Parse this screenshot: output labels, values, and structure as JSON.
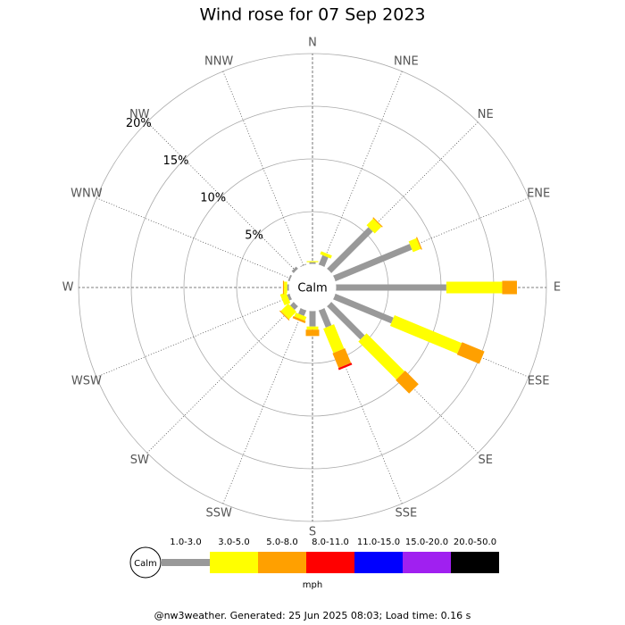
{
  "chart_data": {
    "type": "windrose",
    "title": "Wind rose for 07 Sep 2023",
    "directions": [
      "N",
      "NNE",
      "NE",
      "ENE",
      "E",
      "ESE",
      "SE",
      "SSE",
      "S",
      "SSW",
      "SW",
      "WSW",
      "W",
      "WNW",
      "NW",
      "NNW"
    ],
    "rlim": [
      0,
      20
    ],
    "rticks": [
      {
        "value": 5,
        "label": "5%"
      },
      {
        "value": 10,
        "label": "10%"
      },
      {
        "value": 15,
        "label": "15%"
      },
      {
        "value": 20,
        "label": "20%"
      }
    ],
    "center_label": "Calm",
    "unit": "mph",
    "series": [
      {
        "name": "1.0-3.0",
        "color": "#999999",
        "values": [
          0.2,
          1.0,
          5.6,
          7.9,
          10.5,
          6.0,
          4.5,
          1.8,
          1.5,
          0.6,
          0.5,
          0.3,
          0.2,
          0.2,
          0.3,
          0.1
        ]
      },
      {
        "name": "3.0-5.0",
        "color": "#ffff00",
        "values": [
          0.1,
          0.3,
          0.9,
          0.8,
          5.3,
          6.9,
          5.1,
          2.5,
          0.3,
          0.4,
          1.0,
          0.6,
          0.3,
          0,
          0,
          0
        ]
      },
      {
        "name": "5.0-8.0",
        "color": "#ffa000",
        "values": [
          0,
          0,
          0.1,
          0.1,
          1.4,
          2.3,
          1.8,
          1.5,
          0.6,
          0.2,
          0.1,
          0,
          0.1,
          0,
          0,
          0
        ]
      },
      {
        "name": "8.0-11.0",
        "color": "#ff0000",
        "values": [
          0,
          0,
          0,
          0,
          0,
          0,
          0,
          0.2,
          0,
          0,
          0,
          0,
          0,
          0,
          0,
          0
        ]
      },
      {
        "name": "11.0-15.0",
        "color": "#0000ff",
        "values": [
          0,
          0,
          0,
          0,
          0,
          0,
          0,
          0,
          0,
          0,
          0,
          0,
          0,
          0,
          0,
          0
        ]
      },
      {
        "name": "15.0-20.0",
        "color": "#a020f0",
        "values": [
          0,
          0,
          0,
          0,
          0,
          0,
          0,
          0,
          0,
          0,
          0,
          0,
          0,
          0,
          0,
          0
        ]
      },
      {
        "name": "20.0-50.0",
        "color": "#000000",
        "values": [
          0,
          0,
          0,
          0,
          0,
          0,
          0,
          0,
          0,
          0,
          0,
          0,
          0,
          0,
          0,
          0
        ]
      }
    ],
    "footer": "@nw3weather. Generated: 25 Jun 2025 08:03; Load time: 0.16 s"
  }
}
